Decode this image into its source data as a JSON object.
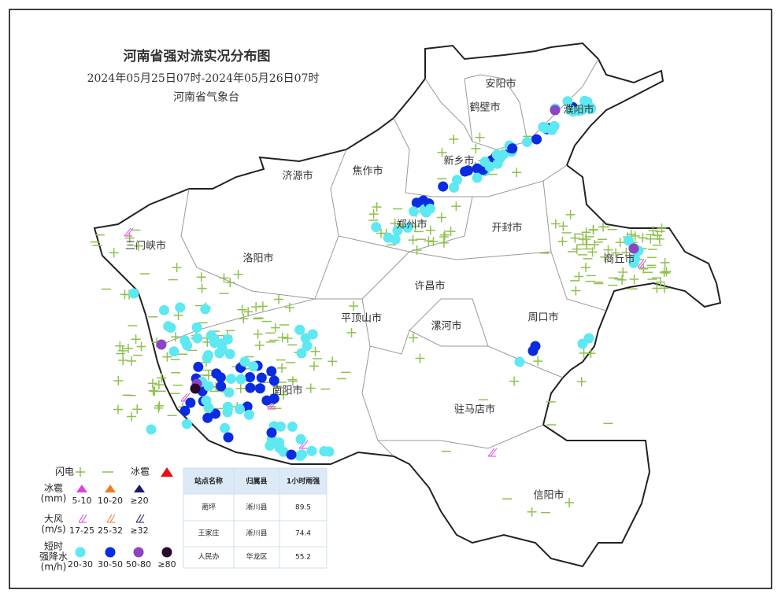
{
  "header": {
    "title": "河南省强对流实况分布图",
    "subtitle": "2024年05月25日07时-2024年05月26日07时",
    "issuer": "河南省气象台"
  },
  "cities": [
    "安阳市",
    "鹤壁市",
    "濮阳市",
    "新乡市",
    "焦作市",
    "济源市",
    "郑州市",
    "开封市",
    "商丘市",
    "三门峡市",
    "洛阳市",
    "许昌市",
    "平顶山市",
    "漯河市",
    "周口市",
    "南阳市",
    "驻马店市",
    "信阳市"
  ],
  "legend": {
    "lightning": "闪电",
    "hail": "冰雹",
    "hail_size": {
      "label": [
        "冰雹",
        "(mm)"
      ],
      "items": [
        "5-10",
        "10-20",
        "≥20"
      ]
    },
    "wind": {
      "label": [
        "大风",
        "(m/s)"
      ],
      "items": [
        "17-25",
        "25-32",
        "≥32"
      ]
    },
    "rain": {
      "label": [
        "短时",
        "强降水",
        "(m/h)"
      ],
      "items": [
        "20-30",
        "30-50",
        "50-80",
        "≥80"
      ]
    }
  },
  "table": {
    "columns": [
      "站点名称",
      "归属县",
      "1小时雨强"
    ],
    "rows": [
      [
        "蔺坪",
        "淅川县",
        89.5
      ],
      [
        "王家庄",
        "淅川县",
        74.4
      ],
      [
        "人民办",
        "华龙区",
        55.2
      ]
    ]
  }
}
